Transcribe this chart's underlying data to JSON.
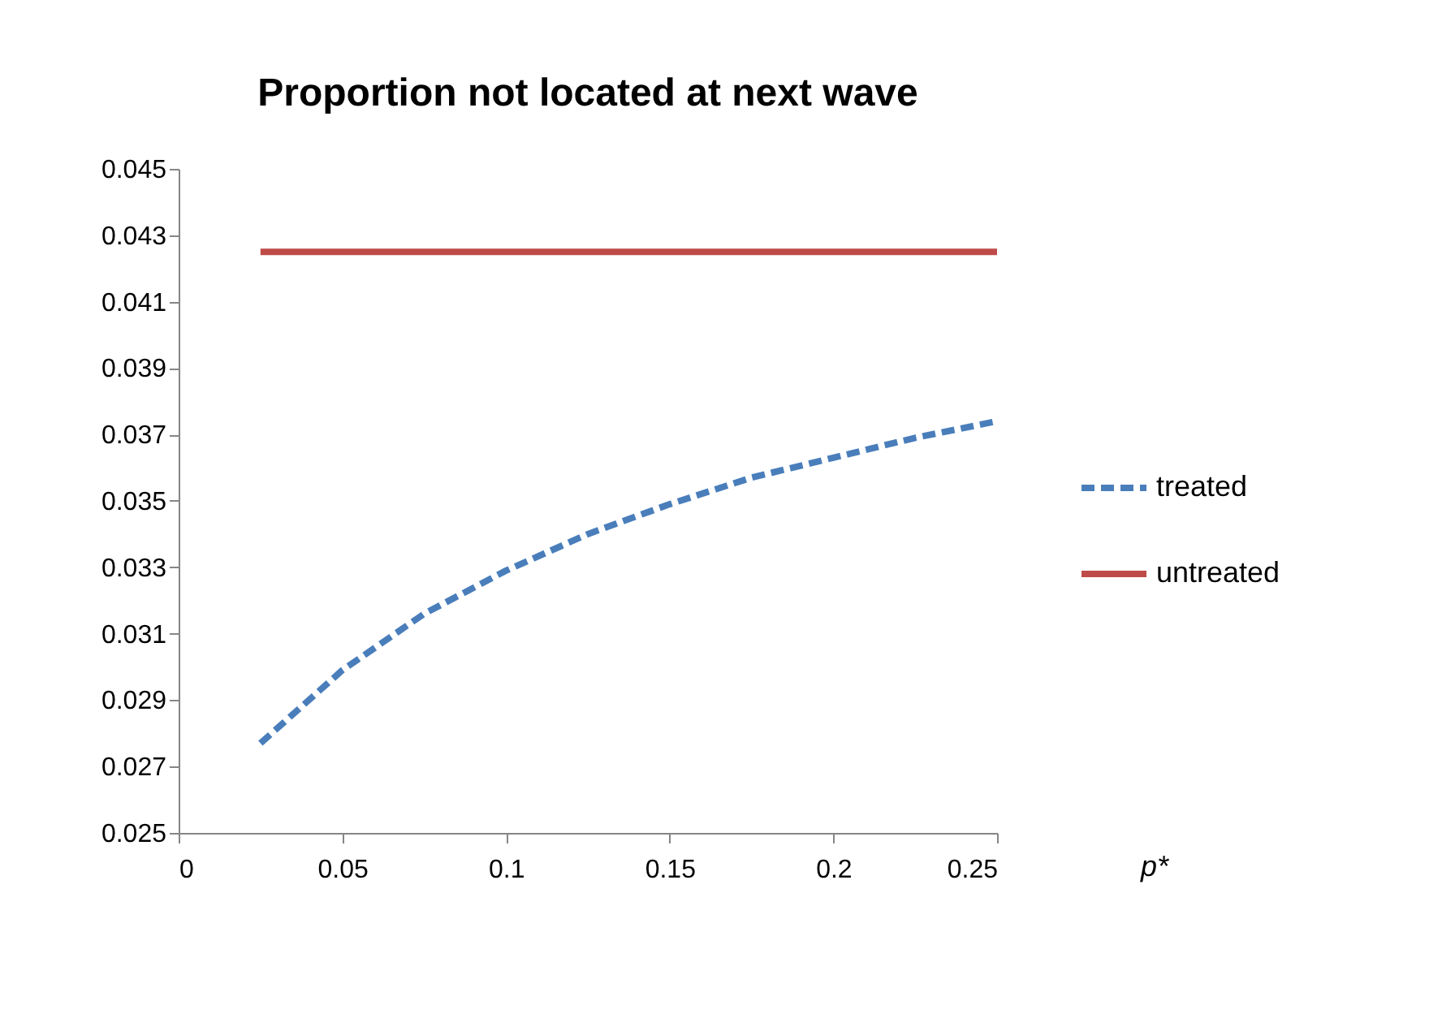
{
  "chart_data": {
    "type": "line",
    "title": "Proportion not located at next wave",
    "xlabel": "p*",
    "x": [
      0.025,
      0.05,
      0.075,
      0.1,
      0.125,
      0.15,
      0.175,
      0.2,
      0.225,
      0.25
    ],
    "series": [
      {
        "name": "treated",
        "color": "#4a7ebb",
        "line_style": "dashed",
        "values": [
          0.0277,
          0.0299,
          0.0316,
          0.0329,
          0.034,
          0.0349,
          0.0357,
          0.0363,
          0.0369,
          0.0374
        ]
      },
      {
        "name": "untreated",
        "color": "#be4b48",
        "line_style": "solid",
        "values": [
          0.0425,
          0.0425,
          0.0425,
          0.0425,
          0.0425,
          0.0425,
          0.0425,
          0.0425,
          0.0425,
          0.0425
        ]
      }
    ],
    "xlim": [
      0,
      0.25
    ],
    "xticks": [
      0,
      0.05,
      0.1,
      0.15,
      0.2,
      0.25
    ],
    "ylim": [
      0.025,
      0.045
    ],
    "yticks": [
      0.025,
      0.027,
      0.029,
      0.031,
      0.033,
      0.035,
      0.037,
      0.039,
      0.041,
      0.043,
      0.045
    ],
    "grid": false,
    "legend": "right",
    "marker": "none"
  }
}
